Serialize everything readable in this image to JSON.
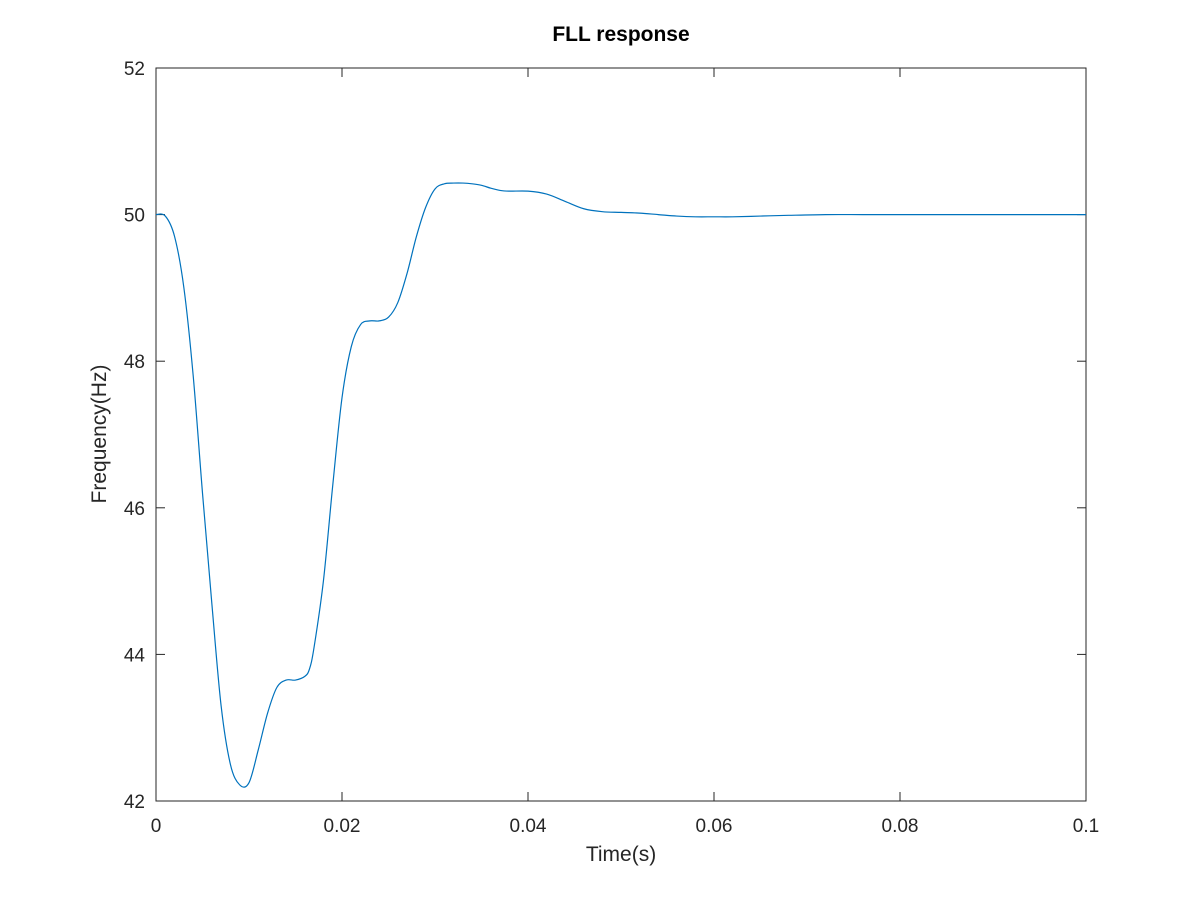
{
  "chart_data": {
    "type": "line",
    "title": "FLL response",
    "xlabel": "Time(s)",
    "ylabel": "Frequency(Hz)",
    "xlim": [
      0,
      0.1
    ],
    "ylim": [
      42,
      52
    ],
    "xticks": [
      0,
      0.02,
      0.04,
      0.06,
      0.08,
      0.1
    ],
    "xtick_labels": [
      "0",
      "0.02",
      "0.04",
      "0.06",
      "0.08",
      "0.1"
    ],
    "yticks": [
      42,
      44,
      46,
      48,
      50,
      52
    ],
    "ytick_labels": [
      "42",
      "44",
      "46",
      "48",
      "50",
      "52"
    ],
    "grid": false,
    "line_color": "#0072bd",
    "series": [
      {
        "x": [
          0,
          0.001,
          0.002,
          0.003,
          0.004,
          0.005,
          0.006,
          0.007,
          0.008,
          0.009,
          0.01,
          0.011,
          0.012,
          0.013,
          0.014,
          0.015,
          0.016,
          0.0165,
          0.017,
          0.018,
          0.019,
          0.02,
          0.021,
          0.022,
          0.023,
          0.024,
          0.025,
          0.026,
          0.027,
          0.028,
          0.029,
          0.03,
          0.031,
          0.032,
          0.033,
          0.034,
          0.035,
          0.036,
          0.037,
          0.038,
          0.04,
          0.042,
          0.044,
          0.046,
          0.048,
          0.05,
          0.052,
          0.054,
          0.056,
          0.058,
          0.06,
          0.062,
          0.065,
          0.068,
          0.072,
          0.076,
          0.08,
          0.085,
          0.09,
          0.095,
          0.1
        ],
        "y": [
          50.0,
          49.98,
          49.7,
          49.0,
          47.8,
          46.2,
          44.7,
          43.3,
          42.5,
          42.22,
          42.25,
          42.7,
          43.2,
          43.55,
          43.65,
          43.65,
          43.7,
          43.8,
          44.1,
          45.0,
          46.3,
          47.5,
          48.2,
          48.5,
          48.55,
          48.55,
          48.6,
          48.8,
          49.2,
          49.7,
          50.1,
          50.35,
          50.42,
          50.43,
          50.43,
          50.42,
          50.4,
          50.36,
          50.33,
          50.32,
          50.32,
          50.28,
          50.18,
          50.08,
          50.04,
          50.03,
          50.02,
          50.0,
          49.98,
          49.97,
          49.97,
          49.97,
          49.98,
          49.99,
          50.0,
          50.0,
          50.0,
          50.0,
          50.0,
          50.0,
          50.0
        ]
      }
    ]
  }
}
